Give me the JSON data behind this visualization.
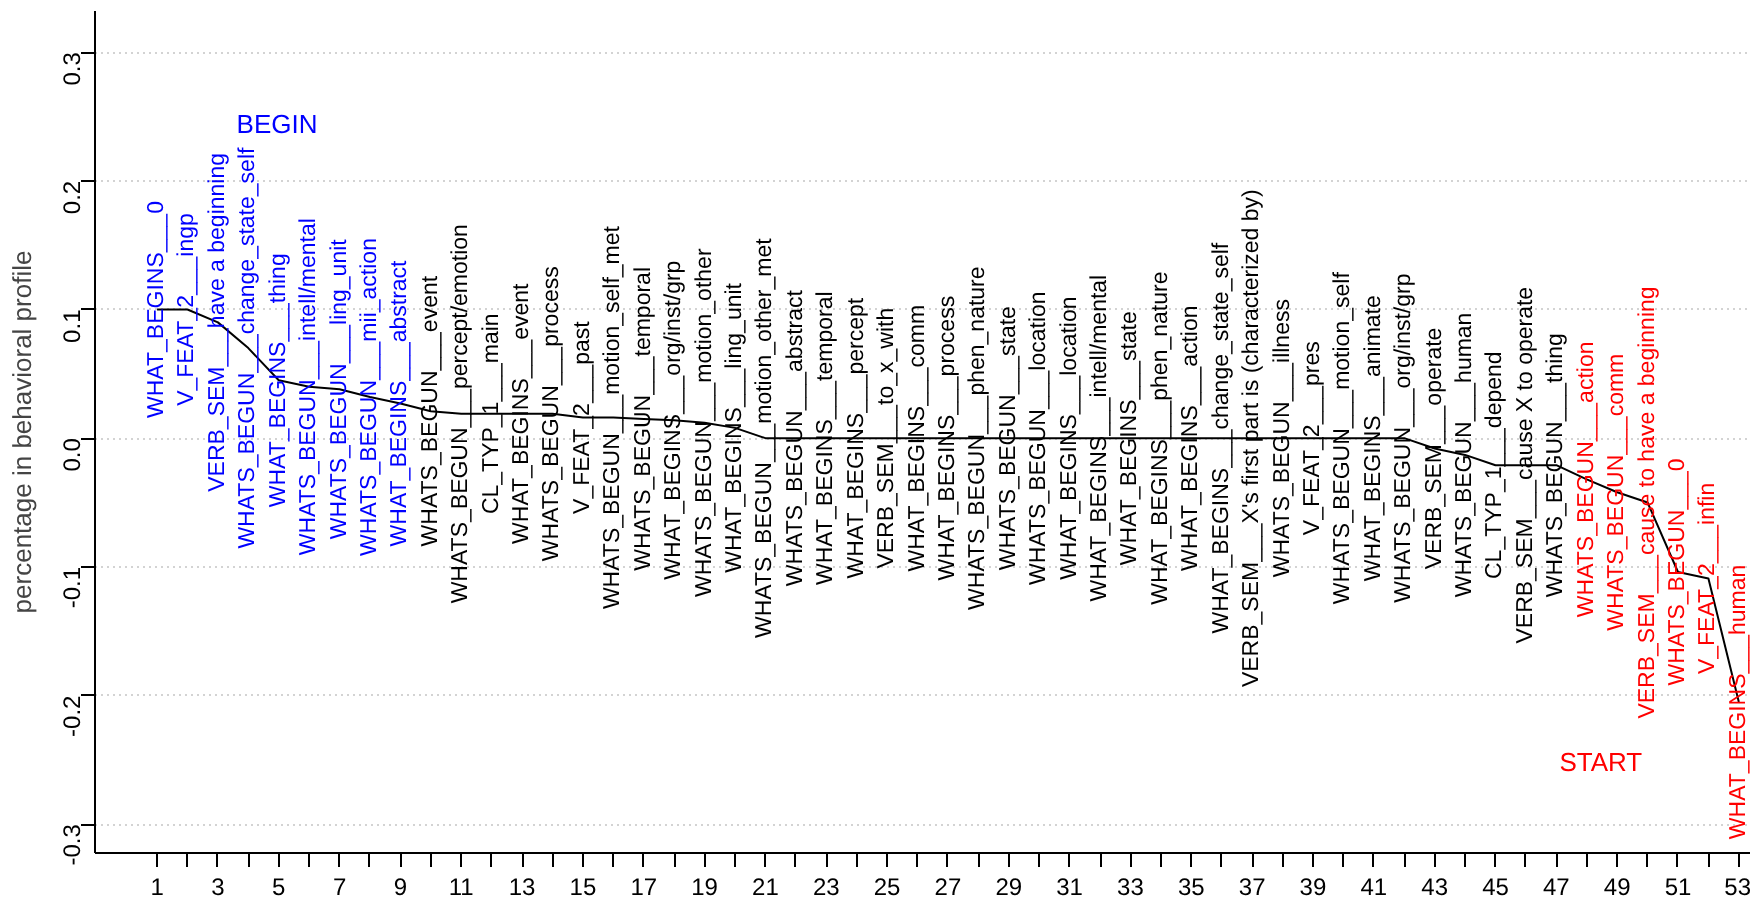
{
  "chart_data": {
    "type": "line",
    "ylabel": "percentage in behavioral profile",
    "x": [
      1,
      2,
      3,
      4,
      5,
      6,
      7,
      8,
      9,
      10,
      11,
      12,
      13,
      14,
      15,
      16,
      17,
      18,
      19,
      20,
      21,
      22,
      23,
      24,
      25,
      26,
      27,
      28,
      29,
      30,
      31,
      32,
      33,
      34,
      35,
      36,
      37,
      38,
      39,
      40,
      41,
      42,
      43,
      44,
      45,
      46,
      47,
      48,
      49,
      50,
      51,
      52,
      53
    ],
    "series": [
      {
        "color": "#000000",
        "values": [
          0.1,
          0.1,
          0.09,
          0.07,
          0.045,
          0.04,
          0.038,
          0.032,
          0.027,
          0.021,
          0.019,
          0.019,
          0.019,
          0.019,
          0.016,
          0.016,
          0.015,
          0.014,
          0.012,
          0.008,
          0.0,
          0.0,
          0.0,
          0.0,
          0.0,
          0.0,
          0.0,
          0.0,
          0.0,
          0.0,
          0.0,
          0.0,
          0.0,
          0.0,
          0.0,
          0.0,
          0.0,
          0.0,
          0.0,
          0.0,
          0.0,
          0.0,
          -0.008,
          -0.013,
          -0.021,
          -0.021,
          -0.021,
          -0.032,
          -0.042,
          -0.05,
          -0.104,
          -0.109,
          -0.205
        ],
        "colors": [
          "#0000ff",
          "#0000ff",
          "#0000ff",
          "#0000ff",
          "#0000ff",
          "#0000ff",
          "#0000ff",
          "#0000ff",
          "#0000ff",
          "#000000",
          "#000000",
          "#000000",
          "#000000",
          "#000000",
          "#000000",
          "#000000",
          "#000000",
          "#000000",
          "#000000",
          "#000000",
          "#000000",
          "#000000",
          "#000000",
          "#000000",
          "#000000",
          "#000000",
          "#000000",
          "#000000",
          "#000000",
          "#000000",
          "#000000",
          "#000000",
          "#000000",
          "#000000",
          "#000000",
          "#000000",
          "#000000",
          "#000000",
          "#000000",
          "#000000",
          "#000000",
          "#000000",
          "#000000",
          "#000000",
          "#000000",
          "#000000",
          "#000000",
          "#ff0000",
          "#ff0000",
          "#ff0000",
          "#ff0000",
          "#ff0000",
          "#ff0000"
        ]
      }
    ],
    "xlim": [
      -1.04,
      53.4
    ],
    "ylim": [
      -0.3224,
      0.332
    ],
    "xticks": [
      1,
      {
        "value": 2,
        "label": null
      },
      3,
      {
        "value": 4,
        "label": null
      },
      5,
      {
        "value": 6,
        "label": null
      },
      7,
      {
        "value": 8,
        "label": null
      },
      9,
      {
        "value": 10,
        "label": null
      },
      11,
      {
        "value": 12,
        "label": null
      },
      13,
      {
        "value": 14,
        "label": null
      },
      15,
      {
        "value": 16,
        "label": null
      },
      17,
      {
        "value": 18,
        "label": null
      },
      19,
      {
        "value": 20,
        "label": null
      },
      21,
      {
        "value": 22,
        "label": null
      },
      23,
      {
        "value": 24,
        "label": null
      },
      25,
      {
        "value": 26,
        "label": null
      },
      27,
      {
        "value": 28,
        "label": null
      },
      29,
      {
        "value": 30,
        "label": null
      },
      31,
      {
        "value": 32,
        "label": null
      },
      33,
      {
        "value": 34,
        "label": null
      },
      35,
      {
        "value": 36,
        "label": null
      },
      37,
      {
        "value": 38,
        "label": null
      },
      39,
      {
        "value": 40,
        "label": null
      },
      41,
      {
        "value": 42,
        "label": null
      },
      43,
      {
        "value": 44,
        "label": null
      },
      45,
      {
        "value": 46,
        "label": null
      },
      47,
      {
        "value": 48,
        "label": null
      },
      49,
      {
        "value": 50,
        "label": null
      },
      51,
      {
        "value": 52,
        "label": null
      },
      53
    ],
    "yticks": [
      {
        "value": -0.3,
        "label": "-0.3"
      },
      {
        "value": -0.2,
        "label": "-0.2"
      },
      {
        "value": -0.1,
        "label": "-0.1"
      },
      {
        "value": 0,
        "label": "0.0"
      },
      {
        "value": 0.1,
        "label": "0.1"
      },
      {
        "value": 0.2,
        "label": "0.2"
      },
      {
        "value": 0.3,
        "label": "0.3"
      }
    ],
    "grid": "y",
    "marker": "none",
    "line_style": "solid",
    "annotations": [
      "BEGIN",
      "START",
      {
        "text": "WHAT_BEGINS___0",
        "x": 1,
        "y": 0.1
      },
      {
        "text": "V_FEAT_2___ingp",
        "x": 2,
        "y": 0.1
      },
      {
        "text": "VERB_SEM___have a beginning",
        "x": 3,
        "y": 0.09
      },
      {
        "text": "WHATS_BEGUN___change_state_self",
        "x": 4,
        "y": 0.07
      },
      {
        "text": "WHAT_BEGINS___thing",
        "x": 5,
        "y": 0.045
      },
      {
        "text": "WHATS_BEGUN___intell/mental",
        "x": 6,
        "y": 0.04
      },
      {
        "text": "WHATS_BEGUN___ling_unit",
        "x": 7,
        "y": 0.038
      },
      {
        "text": "WHATS_BEGUN___mii_action",
        "x": 8,
        "y": 0.032
      },
      {
        "text": "WHAT_BEGINS___abstract",
        "x": 9,
        "y": 0.027
      },
      {
        "text": "WHATS_BEGUN___event",
        "x": 10,
        "y": 0.021
      },
      {
        "text": "WHATS_BEGUN___percept/emotion",
        "x": 11,
        "y": 0.019
      },
      {
        "text": "CL_TYP_1___main",
        "x": 12,
        "y": 0.019
      },
      {
        "text": "WHAT_BEGINS___event",
        "x": 13,
        "y": 0.019
      },
      {
        "text": "WHATS_BEGUN___process",
        "x": 14,
        "y": 0.019
      },
      {
        "text": "V_FEAT_2___past",
        "x": 15,
        "y": 0.016
      },
      {
        "text": "WHATS_BEGUN___motion_self_met",
        "x": 16,
        "y": 0.016
      },
      {
        "text": "WHATS_BEGUN___temporal",
        "x": 17,
        "y": 0.015
      },
      {
        "text": "WHAT_BEGINS___org/inst/grp",
        "x": 18,
        "y": 0.014
      },
      {
        "text": "WHATS_BEGUN___motion_other",
        "x": 19,
        "y": 0.012
      },
      {
        "text": "WHAT_BEGINS___ling_unit",
        "x": 20,
        "y": 0.008
      },
      {
        "text": "WHATS_BEGUN___motion_other_met",
        "x": 21,
        "y": 0.0
      },
      {
        "text": "WHATS_BEGUN___abstract",
        "x": 22,
        "y": 0.0
      },
      {
        "text": "WHAT_BEGINS___temporal",
        "x": 23,
        "y": 0.0
      },
      {
        "text": "WHAT_BEGINS___percept",
        "x": 24,
        "y": 0.0
      },
      {
        "text": "VERB_SEM___to_x_with",
        "x": 25,
        "y": 0.0
      },
      {
        "text": "WHAT_BEGINS___comm",
        "x": 26,
        "y": 0.0
      },
      {
        "text": "WHAT_BEGINS___process",
        "x": 27,
        "y": 0.0
      },
      {
        "text": "WHATS_BEGUN___phen_nature",
        "x": 28,
        "y": 0.0
      },
      {
        "text": "WHATS_BEGUN___state",
        "x": 29,
        "y": 0.0
      },
      {
        "text": "WHATS_BEGUN___location",
        "x": 30,
        "y": 0.0
      },
      {
        "text": "WHAT_BEGINS___location",
        "x": 31,
        "y": 0.0
      },
      {
        "text": "WHAT_BEGINS___intell/mental",
        "x": 32,
        "y": 0.0
      },
      {
        "text": "WHAT_BEGINS___state",
        "x": 33,
        "y": 0.0
      },
      {
        "text": "WHAT_BEGINS___phen_nature",
        "x": 34,
        "y": 0.0
      },
      {
        "text": "WHAT_BEGINS___action",
        "x": 35,
        "y": 0.0
      },
      {
        "text": "WHAT_BEGINS___change_state_self",
        "x": 36,
        "y": 0.0
      },
      {
        "text": "VERB_SEM___X's first part is (characterized by)",
        "x": 37,
        "y": 0.0
      },
      {
        "text": "WHATS_BEGUN___illness",
        "x": 38,
        "y": 0.0
      },
      {
        "text": "V_FEAT_2___pres",
        "x": 39,
        "y": 0.0
      },
      {
        "text": "WHATS_BEGUN___motion_self",
        "x": 40,
        "y": 0.0
      },
      {
        "text": "WHAT_BEGINS___animate",
        "x": 41,
        "y": 0.0
      },
      {
        "text": "WHATS_BEGUN___org/inst/grp",
        "x": 42,
        "y": 0.0
      },
      {
        "text": "VERB_SEM___operate",
        "x": 43,
        "y": -0.008
      },
      {
        "text": "WHATS_BEGUN___human",
        "x": 44,
        "y": -0.013
      },
      {
        "text": "CL_TYP_1___depend",
        "x": 45,
        "y": -0.021
      },
      {
        "text": "VERB_SEM___cause X to operate",
        "x": 46,
        "y": -0.021
      },
      {
        "text": "WHATS_BEGUN___thing",
        "x": 47,
        "y": -0.021
      },
      {
        "text": "WHATS_BEGUN___action",
        "x": 48,
        "y": -0.032
      },
      {
        "text": "WHATS_BEGUN___comm",
        "x": 49,
        "y": -0.042
      },
      {
        "text": "VERB_SEM___cause to have a beginning",
        "x": 50,
        "y": -0.05
      },
      {
        "text": "WHATS_BEGUN___0",
        "x": 51,
        "y": -0.104
      },
      {
        "text": "V_FEAT_2___infin",
        "x": 52,
        "y": -0.109
      },
      {
        "text": "WHAT_BEGINS___human",
        "x": 53,
        "y": -0.205
      }
    ]
  }
}
